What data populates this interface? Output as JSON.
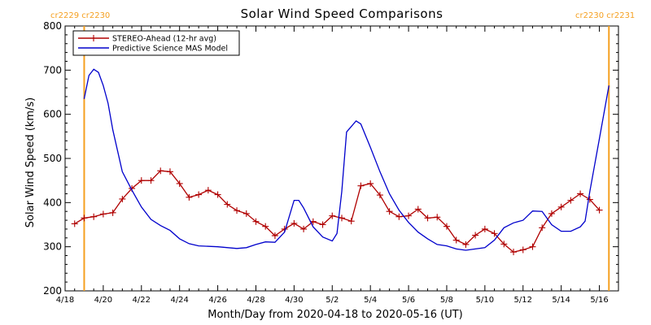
{
  "chart_data": {
    "type": "line",
    "title": "Solar Wind Speed Comparisons",
    "xlabel": "Month/Day from 2020-04-18 to 2020-05-16 (UT)",
    "ylabel": "Solar Wind Speed (km/s)",
    "xlim": [
      "2020-04-18",
      "2020-05-17"
    ],
    "ylim": [
      200,
      800
    ],
    "x_ticks": [
      {
        "date": "2020-04-18",
        "label": "4/18"
      },
      {
        "date": "2020-04-20",
        "label": "4/20"
      },
      {
        "date": "2020-04-22",
        "label": "4/22"
      },
      {
        "date": "2020-04-24",
        "label": "4/24"
      },
      {
        "date": "2020-04-26",
        "label": "4/26"
      },
      {
        "date": "2020-04-28",
        "label": "4/28"
      },
      {
        "date": "2020-04-30",
        "label": "4/30"
      },
      {
        "date": "2020-05-02",
        "label": "5/2"
      },
      {
        "date": "2020-05-04",
        "label": "5/4"
      },
      {
        "date": "2020-05-06",
        "label": "5/6"
      },
      {
        "date": "2020-05-08",
        "label": "5/8"
      },
      {
        "date": "2020-05-10",
        "label": "5/10"
      },
      {
        "date": "2020-05-12",
        "label": "5/12"
      },
      {
        "date": "2020-05-14",
        "label": "5/14"
      },
      {
        "date": "2020-05-16",
        "label": "5/16"
      }
    ],
    "y_ticks": [
      200,
      300,
      400,
      500,
      600,
      700,
      800
    ],
    "legend_position": "top-left",
    "carrington_markers": [
      {
        "date": "2020-04-19 00:00",
        "left_label": "cr2229",
        "right_label": "cr2230",
        "position": "left"
      },
      {
        "date": "2020-05-16 12:00",
        "left_label": "cr2230",
        "right_label": "cr2231",
        "position": "right"
      }
    ],
    "series": [
      {
        "name": "STEREO-Ahead (12-hr avg)",
        "color": "#b00000",
        "marker": "plus",
        "points": [
          [
            "2020-04-18 12:00",
            352
          ],
          [
            "2020-04-19 00:00",
            365
          ],
          [
            "2020-04-19 12:00",
            368
          ],
          [
            "2020-04-20 00:00",
            374
          ],
          [
            "2020-04-20 12:00",
            377
          ],
          [
            "2020-04-21 00:00",
            408
          ],
          [
            "2020-04-21 12:00",
            432
          ],
          [
            "2020-04-22 00:00",
            450
          ],
          [
            "2020-04-22 12:00",
            450
          ],
          [
            "2020-04-23 00:00",
            472
          ],
          [
            "2020-04-23 12:00",
            470
          ],
          [
            "2020-04-24 00:00",
            443
          ],
          [
            "2020-04-24 12:00",
            412
          ],
          [
            "2020-04-25 00:00",
            418
          ],
          [
            "2020-04-25 12:00",
            428
          ],
          [
            "2020-04-26 00:00",
            418
          ],
          [
            "2020-04-26 12:00",
            396
          ],
          [
            "2020-04-27 00:00",
            382
          ],
          [
            "2020-04-27 12:00",
            375
          ],
          [
            "2020-04-28 00:00",
            357
          ],
          [
            "2020-04-28 12:00",
            346
          ],
          [
            "2020-04-29 00:00",
            325
          ],
          [
            "2020-04-29 12:00",
            340
          ],
          [
            "2020-04-30 00:00",
            353
          ],
          [
            "2020-04-30 12:00",
            340
          ],
          [
            "2020-05-01 00:00",
            357
          ],
          [
            "2020-05-01 12:00",
            350
          ],
          [
            "2020-05-02 00:00",
            370
          ],
          [
            "2020-05-02 12:00",
            365
          ],
          [
            "2020-05-03 00:00",
            358
          ],
          [
            "2020-05-03 12:00",
            438
          ],
          [
            "2020-05-04 00:00",
            443
          ],
          [
            "2020-05-04 12:00",
            417
          ],
          [
            "2020-05-05 00:00",
            380
          ],
          [
            "2020-05-05 12:00",
            368
          ],
          [
            "2020-05-06 00:00",
            370
          ],
          [
            "2020-05-06 12:00",
            385
          ],
          [
            "2020-05-07 00:00",
            365
          ],
          [
            "2020-05-07 12:00",
            367
          ],
          [
            "2020-05-08 00:00",
            346
          ],
          [
            "2020-05-08 12:00",
            315
          ],
          [
            "2020-05-09 00:00",
            305
          ],
          [
            "2020-05-09 12:00",
            326
          ],
          [
            "2020-05-10 00:00",
            340
          ],
          [
            "2020-05-10 12:00",
            330
          ],
          [
            "2020-05-11 00:00",
            306
          ],
          [
            "2020-05-11 12:00",
            288
          ],
          [
            "2020-05-12 00:00",
            293
          ],
          [
            "2020-05-12 12:00",
            300
          ],
          [
            "2020-05-13 00:00",
            343
          ],
          [
            "2020-05-13 12:00",
            375
          ],
          [
            "2020-05-14 00:00",
            390
          ],
          [
            "2020-05-14 12:00",
            405
          ],
          [
            "2020-05-15 00:00",
            420
          ],
          [
            "2020-05-15 12:00",
            407
          ],
          [
            "2020-05-16 00:00",
            383
          ]
        ]
      },
      {
        "name": "Predictive Science MAS Model",
        "color": "#0000cc",
        "marker": "none",
        "points": [
          [
            "2020-04-19 00:00",
            635
          ],
          [
            "2020-04-19 06:00",
            688
          ],
          [
            "2020-04-19 12:00",
            702
          ],
          [
            "2020-04-19 18:00",
            695
          ],
          [
            "2020-04-20 00:00",
            665
          ],
          [
            "2020-04-20 06:00",
            625
          ],
          [
            "2020-04-20 12:00",
            565
          ],
          [
            "2020-04-21 00:00",
            470
          ],
          [
            "2020-04-21 12:00",
            428
          ],
          [
            "2020-04-22 00:00",
            390
          ],
          [
            "2020-04-22 12:00",
            362
          ],
          [
            "2020-04-23 00:00",
            348
          ],
          [
            "2020-04-23 12:00",
            337
          ],
          [
            "2020-04-24 00:00",
            318
          ],
          [
            "2020-04-24 12:00",
            307
          ],
          [
            "2020-04-25 00:00",
            302
          ],
          [
            "2020-04-26 00:00",
            300
          ],
          [
            "2020-04-27 00:00",
            296
          ],
          [
            "2020-04-27 12:00",
            298
          ],
          [
            "2020-04-28 00:00",
            305
          ],
          [
            "2020-04-28 12:00",
            311
          ],
          [
            "2020-04-29 00:00",
            310
          ],
          [
            "2020-04-29 12:00",
            333
          ],
          [
            "2020-04-30 00:00",
            405
          ],
          [
            "2020-04-30 06:00",
            405
          ],
          [
            "2020-04-30 12:00",
            388
          ],
          [
            "2020-05-01 00:00",
            345
          ],
          [
            "2020-05-01 12:00",
            322
          ],
          [
            "2020-05-02 00:00",
            313
          ],
          [
            "2020-05-02 06:00",
            330
          ],
          [
            "2020-05-02 12:00",
            425
          ],
          [
            "2020-05-02 18:00",
            560
          ],
          [
            "2020-05-03 06:00",
            585
          ],
          [
            "2020-05-03 12:00",
            578
          ],
          [
            "2020-05-04 00:00",
            525
          ],
          [
            "2020-05-04 12:00",
            470
          ],
          [
            "2020-05-05 00:00",
            420
          ],
          [
            "2020-05-05 12:00",
            383
          ],
          [
            "2020-05-06 00:00",
            355
          ],
          [
            "2020-05-06 12:00",
            333
          ],
          [
            "2020-05-07 00:00",
            318
          ],
          [
            "2020-05-07 12:00",
            305
          ],
          [
            "2020-05-08 00:00",
            302
          ],
          [
            "2020-05-08 12:00",
            295
          ],
          [
            "2020-05-09 00:00",
            292
          ],
          [
            "2020-05-10 00:00",
            298
          ],
          [
            "2020-05-10 12:00",
            315
          ],
          [
            "2020-05-11 00:00",
            343
          ],
          [
            "2020-05-11 12:00",
            354
          ],
          [
            "2020-05-12 00:00",
            360
          ],
          [
            "2020-05-12 12:00",
            381
          ],
          [
            "2020-05-13 00:00",
            380
          ],
          [
            "2020-05-13 12:00",
            350
          ],
          [
            "2020-05-14 00:00",
            335
          ],
          [
            "2020-05-14 12:00",
            335
          ],
          [
            "2020-05-15 00:00",
            345
          ],
          [
            "2020-05-15 06:00",
            358
          ],
          [
            "2020-05-15 12:00",
            425
          ],
          [
            "2020-05-16 00:00",
            545
          ],
          [
            "2020-05-16 12:00",
            665
          ]
        ]
      }
    ]
  }
}
